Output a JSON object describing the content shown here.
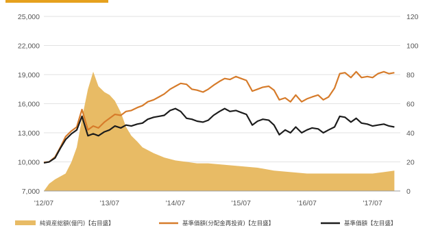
{
  "chart_data": {
    "type": "line",
    "title": "",
    "x_ticks": [
      "'12/07",
      "'13/07",
      "'14/07",
      "'15/07",
      "'16/07",
      "'17/07"
    ],
    "y_left": {
      "min": 7000,
      "max": 25000,
      "ticks": [
        "7,000",
        "10,000",
        "13,000",
        "16,000",
        "19,000",
        "22,000",
        "25,000"
      ]
    },
    "y_right": {
      "min": 0,
      "max": 120,
      "ticks": [
        "0",
        "20",
        "40",
        "60",
        "80",
        "100",
        "120"
      ]
    },
    "grid": true,
    "legend_position": "bottom",
    "colors": {
      "area": "#e8bb65",
      "orange": "#d67b2a",
      "black": "#1c1c1c",
      "grid": "#d9d9d9",
      "accent": "#e6a11e"
    },
    "series": [
      {
        "name": "純資産総額(億円)【右目盛】",
        "kind": "area",
        "axis": "right",
        "color": "#e8bb65",
        "x": [
          2012.5,
          2012.58,
          2012.67,
          2012.75,
          2012.83,
          2012.92,
          2013.0,
          2013.08,
          2013.17,
          2013.25,
          2013.33,
          2013.42,
          2013.5,
          2013.58,
          2013.67,
          2013.75,
          2013.83,
          2013.92,
          2014.0,
          2014.17,
          2014.33,
          2014.5,
          2014.67,
          2014.83,
          2015.0,
          2015.25,
          2015.5,
          2015.75,
          2016.0,
          2016.25,
          2016.5,
          2016.75,
          2017.0,
          2017.25,
          2017.5,
          2017.67,
          2017.83
        ],
        "values": [
          0,
          5,
          8,
          10,
          12,
          20,
          30,
          50,
          70,
          82,
          72,
          68,
          66,
          62,
          54,
          44,
          38,
          34,
          30,
          26,
          23,
          21,
          20,
          19,
          19,
          18,
          17,
          16,
          14,
          13,
          12,
          12,
          12,
          12,
          12,
          13,
          14
        ]
      },
      {
        "name": "基準価額(分配金再投資)【左目盛】",
        "kind": "line",
        "axis": "left",
        "color": "#d67b2a",
        "x": [
          2012.5,
          2012.58,
          2012.67,
          2012.75,
          2012.83,
          2012.92,
          2013.0,
          2013.08,
          2013.17,
          2013.25,
          2013.33,
          2013.42,
          2013.5,
          2013.58,
          2013.67,
          2013.75,
          2013.83,
          2013.92,
          2014.0,
          2014.08,
          2014.17,
          2014.25,
          2014.33,
          2014.42,
          2014.5,
          2014.58,
          2014.67,
          2014.75,
          2014.83,
          2014.92,
          2015.0,
          2015.08,
          2015.17,
          2015.25,
          2015.33,
          2015.42,
          2015.5,
          2015.58,
          2015.67,
          2015.75,
          2015.83,
          2015.92,
          2016.0,
          2016.08,
          2016.17,
          2016.25,
          2016.33,
          2016.42,
          2016.5,
          2016.58,
          2016.67,
          2016.75,
          2016.83,
          2016.92,
          2017.0,
          2017.08,
          2017.17,
          2017.25,
          2017.33,
          2017.42,
          2017.5,
          2017.58,
          2017.67,
          2017.75,
          2017.83
        ],
        "values": [
          9950,
          10000,
          10500,
          11500,
          12600,
          13200,
          13600,
          15400,
          13300,
          13700,
          13500,
          14100,
          14500,
          14900,
          14800,
          15200,
          15300,
          15600,
          15800,
          16200,
          16400,
          16700,
          17000,
          17500,
          17800,
          18100,
          18000,
          17500,
          17400,
          17200,
          17500,
          17900,
          18300,
          18600,
          18500,
          18800,
          18600,
          18400,
          17300,
          17500,
          17700,
          17800,
          17400,
          16400,
          16600,
          16200,
          16900,
          16200,
          16500,
          16700,
          16900,
          16400,
          16700,
          17600,
          19100,
          19200,
          18700,
          19300,
          18700,
          18800,
          18700,
          19100,
          19300,
          19100,
          19200
        ]
      },
      {
        "name": "基準価額【左目盛】",
        "kind": "line",
        "axis": "left",
        "color": "#1c1c1c",
        "x": [
          2012.5,
          2012.58,
          2012.67,
          2012.75,
          2012.83,
          2012.92,
          2013.0,
          2013.08,
          2013.17,
          2013.25,
          2013.33,
          2013.42,
          2013.5,
          2013.58,
          2013.67,
          2013.75,
          2013.83,
          2013.92,
          2014.0,
          2014.08,
          2014.17,
          2014.25,
          2014.33,
          2014.42,
          2014.5,
          2014.58,
          2014.67,
          2014.75,
          2014.83,
          2014.92,
          2015.0,
          2015.08,
          2015.17,
          2015.25,
          2015.33,
          2015.42,
          2015.5,
          2015.58,
          2015.67,
          2015.75,
          2015.83,
          2015.92,
          2016.0,
          2016.08,
          2016.17,
          2016.25,
          2016.33,
          2016.42,
          2016.5,
          2016.58,
          2016.67,
          2016.75,
          2016.83,
          2016.92,
          2017.0,
          2017.08,
          2017.17,
          2017.25,
          2017.33,
          2017.42,
          2017.5,
          2017.58,
          2017.67,
          2017.75,
          2017.83
        ],
        "values": [
          9900,
          10000,
          10400,
          11400,
          12300,
          12900,
          13300,
          14700,
          12700,
          12900,
          12700,
          13100,
          13300,
          13700,
          13500,
          13800,
          13700,
          13900,
          14000,
          14400,
          14600,
          14700,
          14800,
          15300,
          15500,
          15200,
          14500,
          14400,
          14200,
          14100,
          14300,
          14800,
          15200,
          15500,
          15200,
          15300,
          15100,
          14900,
          13800,
          14200,
          14400,
          14300,
          13800,
          12800,
          13300,
          13000,
          13600,
          13000,
          13300,
          13500,
          13400,
          13000,
          13300,
          13600,
          14700,
          14600,
          14100,
          14500,
          14000,
          13900,
          13700,
          13800,
          13900,
          13700,
          13600
        ]
      }
    ]
  }
}
